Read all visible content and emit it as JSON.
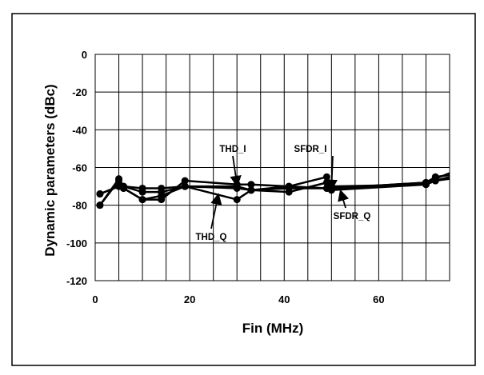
{
  "chart_data": {
    "type": "line",
    "xlabel": "Fin (MHz)",
    "ylabel": "Dynamic parameters (dBc)",
    "xlim": [
      0,
      75
    ],
    "ylim": [
      -120,
      0
    ],
    "grid": true,
    "x_ticks": [
      {
        "value": 0,
        "label": "0"
      },
      {
        "value": 20,
        "label": "20"
      },
      {
        "value": 40,
        "label": "40"
      },
      {
        "value": 60,
        "label": "60"
      }
    ],
    "y_ticks": [
      {
        "value": 0,
        "label": "0"
      },
      {
        "value": -20,
        "label": "-20"
      },
      {
        "value": -40,
        "label": "-40"
      },
      {
        "value": -60,
        "label": "-60"
      },
      {
        "value": -80,
        "label": "-80"
      },
      {
        "value": -100,
        "label": "-100"
      },
      {
        "value": -120,
        "label": "-120"
      }
    ],
    "series": [
      {
        "name": "THD_I",
        "x": [
          1,
          5,
          6,
          10,
          14,
          19,
          30,
          33,
          41,
          49,
          50,
          70,
          72,
          75
        ],
        "y": [
          -80,
          -67,
          -71,
          -77,
          -77,
          -67,
          -69,
          -69,
          -70,
          -65,
          -71,
          -68,
          -66,
          -63
        ]
      },
      {
        "name": "THD_Q",
        "x": [
          1,
          5,
          6,
          10,
          14,
          19,
          30,
          33,
          41,
          49,
          50,
          70,
          72,
          75
        ],
        "y": [
          -74,
          -70,
          -70,
          -71,
          -71,
          -70,
          -77,
          -72,
          -73,
          -68,
          -70,
          -69,
          -67,
          -65
        ]
      },
      {
        "name": "SFDR_I",
        "x": [
          1,
          5,
          6,
          10,
          14,
          19,
          30,
          33,
          41,
          49,
          50,
          70,
          72,
          75
        ],
        "y": [
          -80,
          -66,
          -70,
          -73,
          -73,
          -70,
          -71,
          -72,
          -70,
          -71,
          -71,
          -68,
          -65,
          -64
        ]
      },
      {
        "name": "SFDR_Q",
        "x": [
          1,
          5,
          6,
          10,
          14,
          19,
          30,
          33,
          41,
          49,
          50,
          70,
          72,
          75
        ],
        "y": [
          -74,
          -70,
          -71,
          -77,
          -75,
          -70,
          -70,
          -72,
          -71,
          -71,
          -72,
          -69,
          -67,
          -66
        ]
      }
    ],
    "annotations": [
      {
        "text": "THD_I",
        "series": "THD_I",
        "target_x": 30,
        "target_y": -69
      },
      {
        "text": "THD_Q",
        "series": "THD_Q",
        "target_x": 26,
        "target_y": -75
      },
      {
        "text": "SFDR_I",
        "series": "SFDR_I",
        "target_x": 50,
        "target_y": -71
      },
      {
        "text": "SFDR_Q",
        "series": "SFDR_Q",
        "target_x": 52,
        "target_y": -73
      }
    ]
  }
}
